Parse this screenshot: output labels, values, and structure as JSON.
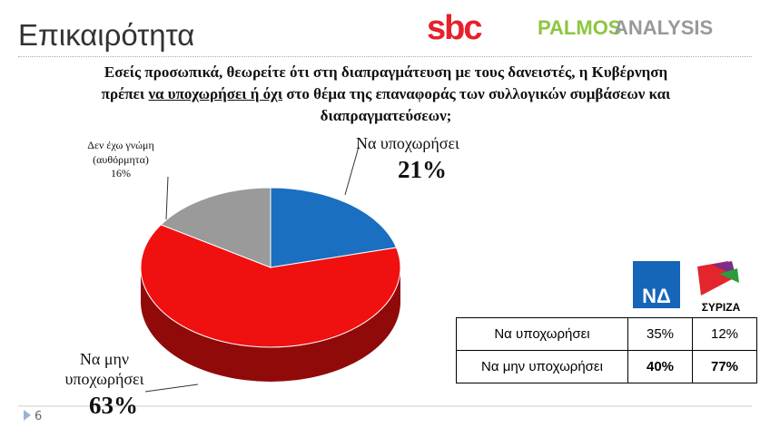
{
  "header": {
    "title": "Επικαιρότητα",
    "logos": [
      "sbc",
      "PALMOS",
      "ANALYSIS"
    ]
  },
  "chart_data": {
    "type": "pie",
    "title_parts": [
      "Εσείς προσωπικά, θεωρείτε ότι στη διαπραγμάτευση με τους δανειστές, η Κυβέρνηση πρέπει ",
      "να υποχωρήσει ή όχι",
      " στο θέμα της επαναφοράς των συλλογικών συμβάσεων και διαπραγματεύσεων;"
    ],
    "categories": [
      "Να υποχωρήσει",
      "Να μην υποχωρήσει",
      "Δεν έχω γνώμη (αυθόρμητα)"
    ],
    "values": [
      21,
      63,
      16
    ],
    "value_labels": [
      "21%",
      "63%",
      "16%"
    ],
    "colors": [
      "#1b6fc0",
      "#f01010",
      "#9a9a9a"
    ]
  },
  "table": {
    "columns": [
      "ΝΔ",
      "ΣΥΡΙΖΑ"
    ],
    "rows": [
      [
        "Να υποχωρήσει",
        "35%",
        "12%"
      ],
      [
        "Να μην υποχωρήσει",
        "40%",
        "77%"
      ]
    ]
  },
  "footer": {
    "page": "6"
  }
}
